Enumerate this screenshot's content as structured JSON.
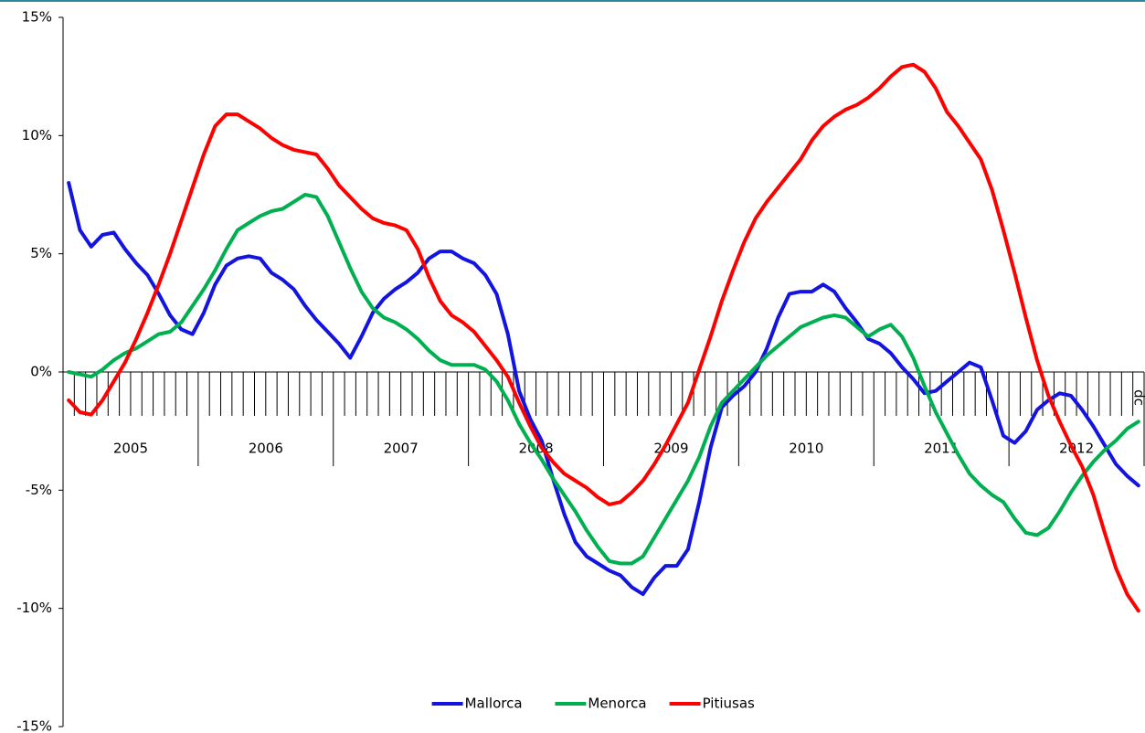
{
  "chart_data": {
    "type": "line",
    "categories": [
      null,
      null,
      null,
      null,
      null,
      null,
      null,
      null,
      null,
      null,
      null,
      null,
      null,
      null,
      null,
      null,
      null,
      null,
      null,
      null,
      null,
      null,
      null,
      null,
      null,
      null,
      null,
      null,
      null,
      null,
      null,
      null,
      null,
      null,
      null,
      null,
      null,
      null,
      null,
      null,
      null,
      null,
      null,
      null,
      null,
      null,
      null,
      null,
      null,
      null,
      null,
      null,
      null,
      null,
      null,
      null,
      null,
      null,
      null,
      null,
      null,
      null,
      null,
      null,
      null,
      null,
      null,
      null,
      null,
      null,
      null,
      null,
      null,
      null,
      null,
      null,
      null,
      null,
      null,
      null,
      null,
      null,
      null,
      null,
      null,
      null,
      null,
      null,
      null,
      null,
      null,
      null,
      null,
      null,
      null,
      "dc"
    ],
    "years": [
      "2005",
      "2006",
      "2007",
      "2008",
      "2009",
      "2010",
      "2011",
      "2012"
    ],
    "series": [
      {
        "name": "Mallorca",
        "color": "#1414e0",
        "values": [
          8.0,
          6.0,
          5.3,
          5.8,
          5.9,
          5.2,
          4.6,
          4.1,
          3.3,
          2.4,
          1.8,
          1.6,
          2.5,
          3.7,
          4.5,
          4.8,
          4.9,
          4.8,
          4.2,
          3.9,
          3.5,
          2.8,
          2.2,
          1.7,
          1.2,
          0.6,
          1.5,
          2.5,
          3.1,
          3.5,
          3.8,
          4.2,
          4.8,
          5.1,
          5.1,
          4.8,
          4.6,
          4.1,
          3.3,
          1.6,
          -0.8,
          -2.0,
          -2.9,
          -4.5,
          -6.0,
          -7.2,
          -7.8,
          -8.1,
          -8.4,
          -8.6,
          -9.1,
          -9.4,
          -8.7,
          -8.2,
          -8.2,
          -7.5,
          -5.5,
          -3.2,
          -1.5,
          -1.0,
          -0.6,
          0.0,
          1.0,
          2.3,
          3.3,
          3.4,
          3.4,
          3.7,
          3.4,
          2.7,
          2.1,
          1.4,
          1.2,
          0.8,
          0.2,
          -0.3,
          -0.9,
          -0.8,
          -0.4,
          0.0,
          0.4,
          0.2,
          -1.2,
          -2.7,
          -3.0,
          -2.5,
          -1.6,
          -1.2,
          -0.9,
          -1.0,
          -1.6,
          -2.3,
          -3.1,
          -3.9,
          -4.4,
          -4.8
        ]
      },
      {
        "name": "Menorca",
        "color": "#00b050",
        "values": [
          0.0,
          -0.1,
          -0.2,
          0.1,
          0.5,
          0.8,
          1.0,
          1.3,
          1.6,
          1.7,
          2.1,
          2.8,
          3.5,
          4.3,
          5.2,
          6.0,
          6.3,
          6.6,
          6.8,
          6.9,
          7.2,
          7.5,
          7.4,
          6.6,
          5.5,
          4.4,
          3.4,
          2.7,
          2.3,
          2.1,
          1.8,
          1.4,
          0.9,
          0.5,
          0.3,
          0.3,
          0.3,
          0.1,
          -0.4,
          -1.2,
          -2.2,
          -3.0,
          -3.7,
          -4.5,
          -5.2,
          -5.9,
          -6.7,
          -7.4,
          -8.0,
          -8.1,
          -8.1,
          -7.8,
          -7.0,
          -6.2,
          -5.4,
          -4.6,
          -3.6,
          -2.3,
          -1.3,
          -0.8,
          -0.3,
          0.2,
          0.7,
          1.1,
          1.5,
          1.9,
          2.1,
          2.3,
          2.4,
          2.3,
          1.9,
          1.5,
          1.8,
          2.0,
          1.5,
          0.6,
          -0.6,
          -1.7,
          -2.6,
          -3.5,
          -4.3,
          -4.8,
          -5.2,
          -5.5,
          -6.2,
          -6.8,
          -6.9,
          -6.6,
          -5.9,
          -5.1,
          -4.4,
          -3.8,
          -3.3,
          -2.9,
          -2.4,
          -2.1
        ]
      },
      {
        "name": "Pitiusas",
        "color": "#ff0000",
        "values": [
          -1.2,
          -1.7,
          -1.8,
          -1.2,
          -0.4,
          0.4,
          1.4,
          2.5,
          3.7,
          5.0,
          6.4,
          7.8,
          9.2,
          10.4,
          10.9,
          10.9,
          10.6,
          10.3,
          9.9,
          9.6,
          9.4,
          9.3,
          9.2,
          8.6,
          7.9,
          7.4,
          6.9,
          6.5,
          6.3,
          6.2,
          6.0,
          5.2,
          4.0,
          3.0,
          2.4,
          2.1,
          1.7,
          1.1,
          0.5,
          -0.2,
          -1.3,
          -2.3,
          -3.2,
          -3.8,
          -4.3,
          -4.6,
          -4.9,
          -5.3,
          -5.6,
          -5.5,
          -5.1,
          -4.6,
          -3.9,
          -3.1,
          -2.2,
          -1.3,
          0.1,
          1.5,
          3.0,
          4.3,
          5.5,
          6.5,
          7.2,
          7.8,
          8.4,
          9.0,
          9.8,
          10.4,
          10.8,
          11.1,
          11.3,
          11.6,
          12.0,
          12.5,
          12.9,
          13.0,
          12.7,
          12.0,
          11.0,
          10.4,
          9.7,
          9.0,
          7.7,
          6.0,
          4.2,
          2.3,
          0.5,
          -1.0,
          -2.1,
          -3.1,
          -4.0,
          -5.2,
          -6.8,
          -8.3,
          -9.4,
          -10.1
        ]
      }
    ],
    "ylim": [
      -15,
      15
    ],
    "yticks": [
      {
        "value": -15,
        "label": "-15%"
      },
      {
        "value": -10,
        "label": "-10%"
      },
      {
        "value": -5,
        "label": "-5%"
      },
      {
        "value": 0,
        "label": "0%"
      },
      {
        "value": 5,
        "label": "5%"
      },
      {
        "value": 10,
        "label": "10%"
      },
      {
        "value": 15,
        "label": "15%"
      }
    ],
    "grid": false,
    "legend": "bottom"
  }
}
